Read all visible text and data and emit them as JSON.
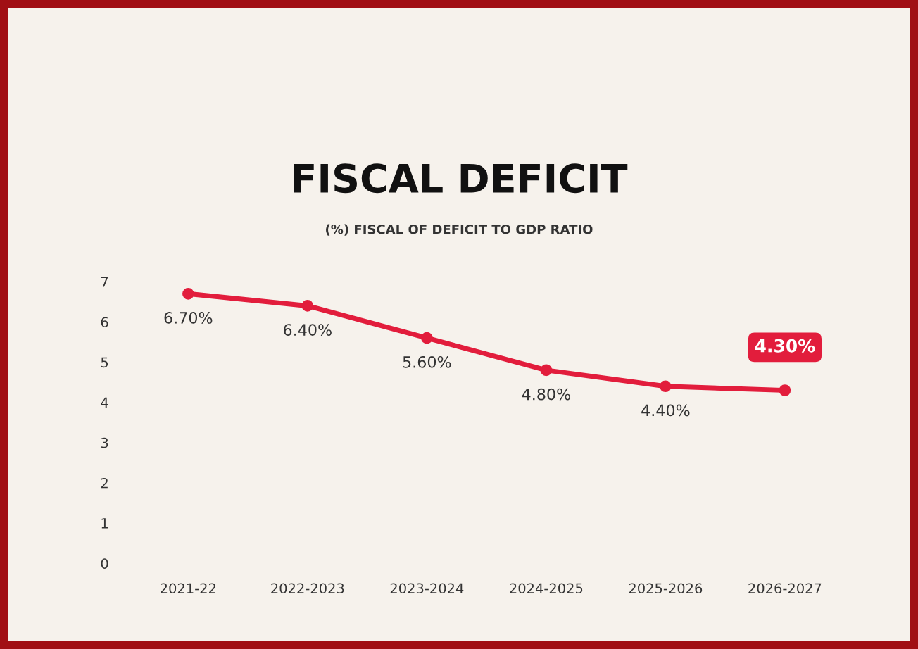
{
  "chart_data": {
    "type": "line",
    "title": "FISCAL DEFICIT",
    "subtitle": "(%) FISCAL OF DEFICIT TO GDP RATIO",
    "categories": [
      "2021-22",
      "2022-2023",
      "2023-2024",
      "2024-2025",
      "2025-2026",
      "2026-2027"
    ],
    "series": [
      {
        "color": "#e21d3c",
        "values": [
          6.7,
          6.4,
          5.6,
          4.8,
          4.4,
          4.3
        ],
        "value_labels": [
          "6.70%",
          "6.40%",
          "5.60%",
          "4.80%",
          "4.40%",
          "4.30%"
        ]
      }
    ],
    "ylim": [
      0,
      7
    ],
    "yticks": [
      0,
      1,
      2,
      3,
      4,
      5,
      6,
      7
    ],
    "grid": false,
    "marker": "circle",
    "line_style": "solid"
  }
}
